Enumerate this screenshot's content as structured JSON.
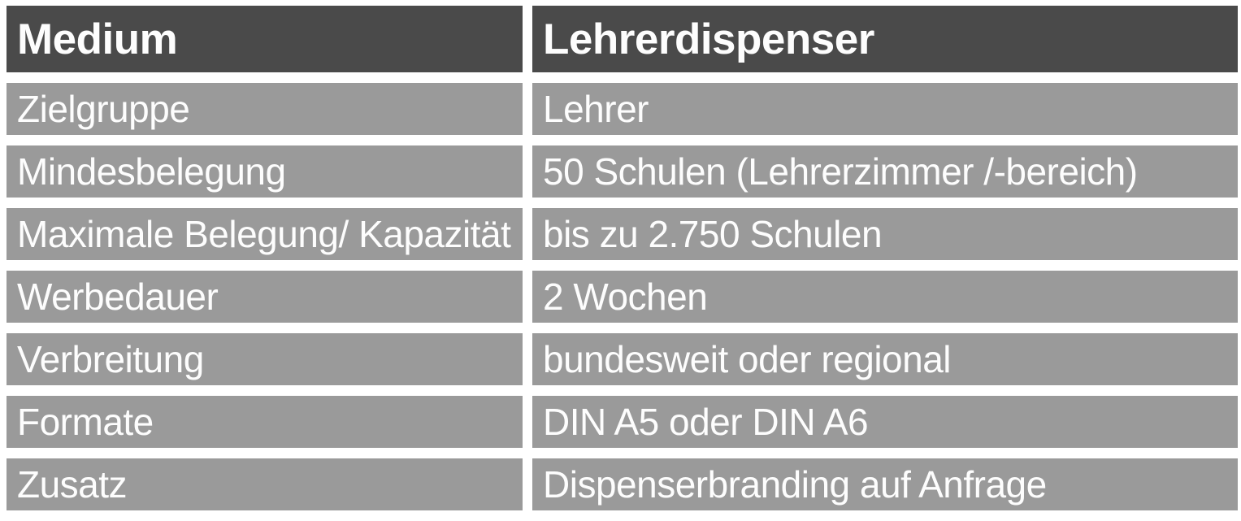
{
  "table": {
    "columns": [
      {
        "label": "Medium"
      },
      {
        "label": "Lehrerdispenser"
      }
    ],
    "rows": [
      {
        "label": "Zielgruppe",
        "value": "Lehrer"
      },
      {
        "label": "Mindesbelegung",
        "value": "50 Schulen (Lehrerzimmer /-bereich)"
      },
      {
        "label": "Maximale Belegung/ Kapazität",
        "value": "bis zu 2.750 Schulen"
      },
      {
        "label": "Werbedauer",
        "value": "2 Wochen"
      },
      {
        "label": "Verbreitung",
        "value": "bundesweit oder regional"
      },
      {
        "label": "Formate",
        "value": "DIN A5 oder DIN A6"
      },
      {
        "label": "Zusatz",
        "value": "Dispenserbranding auf Anfrage"
      }
    ],
    "colors": {
      "header_bg": "#4a4a4a",
      "row_bg": "#9a9a9a",
      "text": "#fdfdfd",
      "page_bg": "#ffffff"
    }
  }
}
